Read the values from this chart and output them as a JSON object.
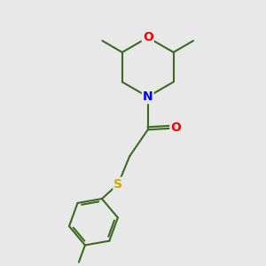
{
  "background_color": "#e8e8e8",
  "bond_color": "#3a6b20",
  "atom_colors": {
    "O": "#ff0000",
    "N": "#0000ff",
    "S": "#ccaa00",
    "C": "#3a6b20"
  },
  "bond_width": 1.5,
  "figsize": [
    3.0,
    3.0
  ],
  "dpi": 100
}
